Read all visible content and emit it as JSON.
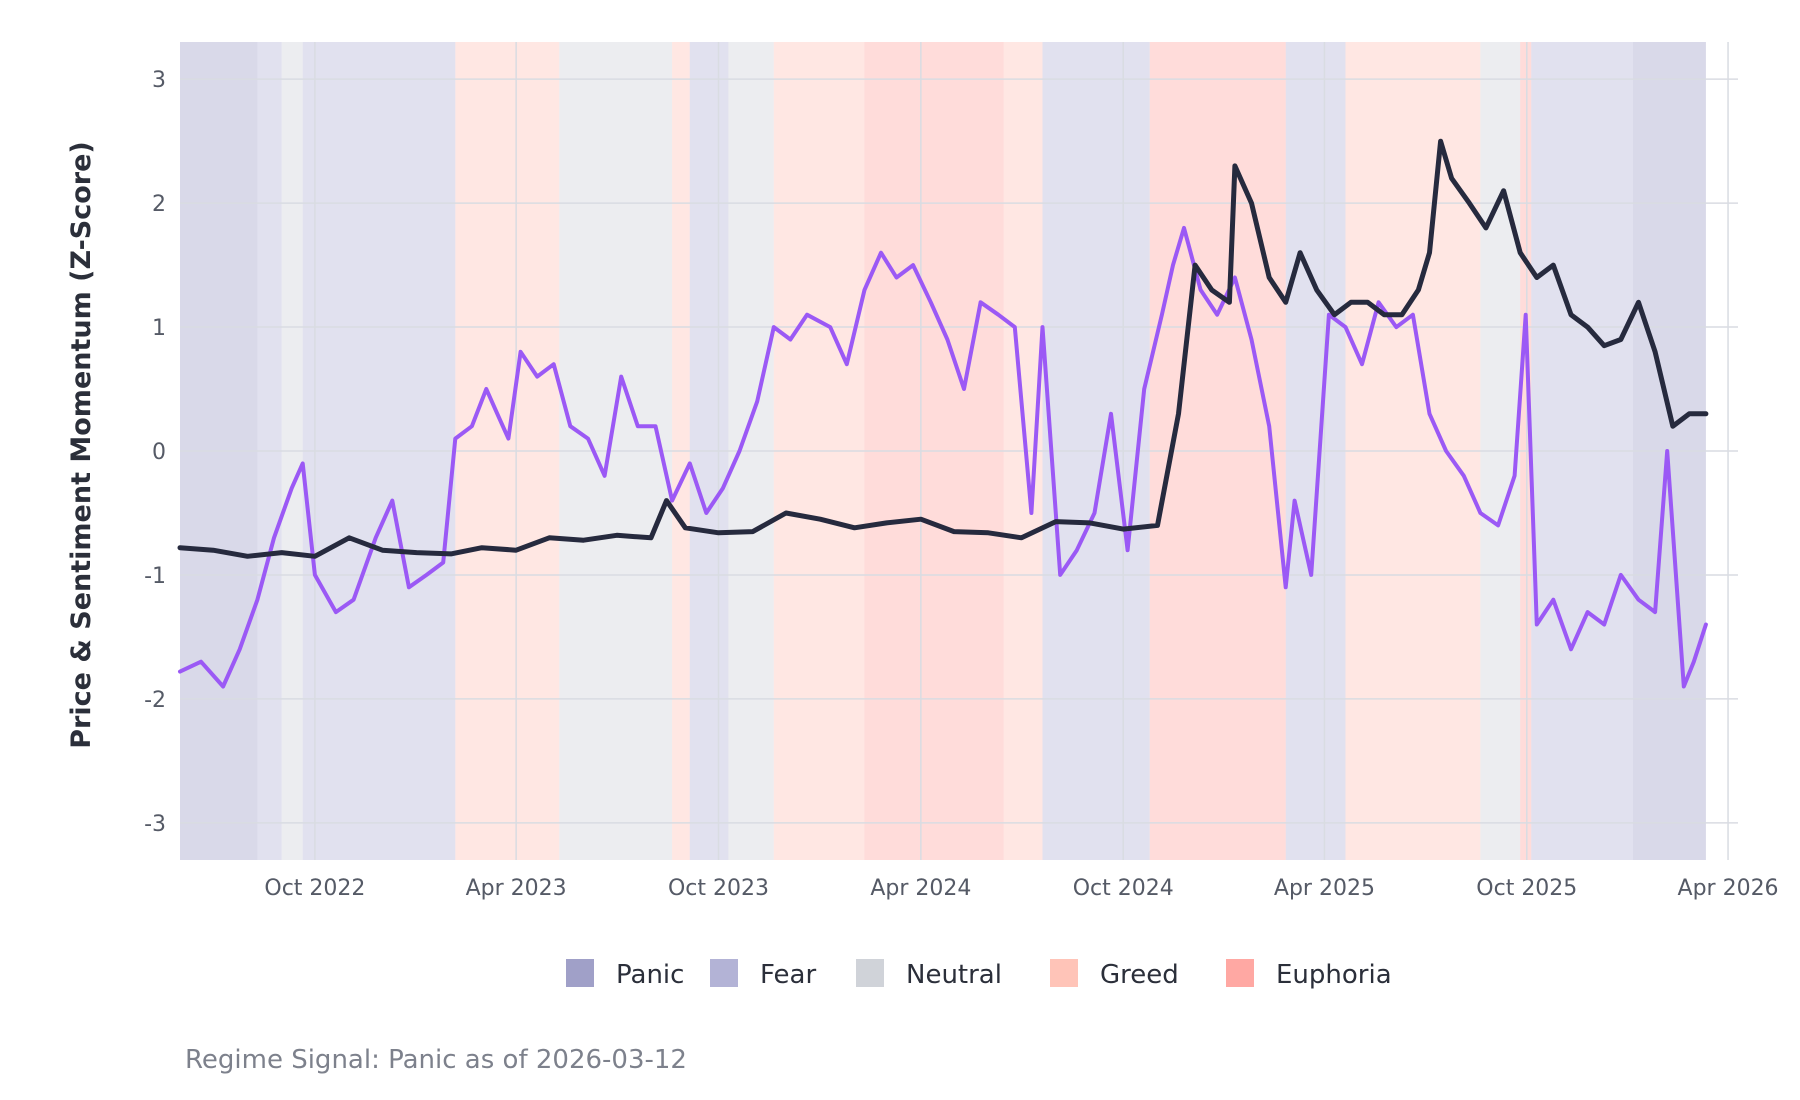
{
  "chart_data": {
    "type": "line",
    "title": "",
    "xlabel": "",
    "ylabel": "Price & Sentiment Momentum (Z-Score)",
    "ylim": [
      -3.3,
      3.3
    ],
    "xlim": [
      "2022-06-01",
      "2026-04-10"
    ],
    "yticks": [
      -3,
      -2,
      -1,
      0,
      1,
      2,
      3
    ],
    "ytick_labels": [
      "-3",
      "-2",
      "-1",
      "0",
      "1",
      "2",
      "3"
    ],
    "xticks": [
      "2022-10-01",
      "2023-04-01",
      "2023-10-01",
      "2024-04-01",
      "2024-10-01",
      "2025-04-01",
      "2025-10-01",
      "2026-04-01"
    ],
    "xtick_labels": [
      "Oct 2022",
      "Apr 2023",
      "Oct 2023",
      "Apr 2024",
      "Oct 2024",
      "Apr 2025",
      "Oct 2025",
      "Apr 2026"
    ],
    "grid": true,
    "legend_position": "bottom",
    "legend": [
      {
        "label": "Panic",
        "color": "#a0a0c8"
      },
      {
        "label": "Fear",
        "color": "#b3b3d6"
      },
      {
        "label": "Neutral",
        "color": "#d0d3d9"
      },
      {
        "label": "Greed",
        "color": "#ffc4b8"
      },
      {
        "label": "Euphoria",
        "color": "#ffa8a3"
      }
    ],
    "regime_bands": [
      {
        "start": "2022-06-01",
        "end": "2022-08-10",
        "regime": "Panic"
      },
      {
        "start": "2022-08-10",
        "end": "2022-09-01",
        "regime": "Fear"
      },
      {
        "start": "2022-09-01",
        "end": "2022-09-20",
        "regime": "Neutral"
      },
      {
        "start": "2022-09-20",
        "end": "2023-02-05",
        "regime": "Fear"
      },
      {
        "start": "2023-02-05",
        "end": "2023-05-10",
        "regime": "Greed"
      },
      {
        "start": "2023-05-10",
        "end": "2023-08-20",
        "regime": "Neutral"
      },
      {
        "start": "2023-08-20",
        "end": "2023-09-05",
        "regime": "Greed"
      },
      {
        "start": "2023-09-05",
        "end": "2023-10-10",
        "regime": "Fear"
      },
      {
        "start": "2023-10-10",
        "end": "2023-11-20",
        "regime": "Neutral"
      },
      {
        "start": "2023-11-20",
        "end": "2024-02-10",
        "regime": "Greed"
      },
      {
        "start": "2024-02-10",
        "end": "2024-06-15",
        "regime": "Euphoria"
      },
      {
        "start": "2024-06-15",
        "end": "2024-07-20",
        "regime": "Greed"
      },
      {
        "start": "2024-07-20",
        "end": "2024-10-25",
        "regime": "Fear"
      },
      {
        "start": "2024-10-25",
        "end": "2025-02-25",
        "regime": "Euphoria"
      },
      {
        "start": "2025-02-25",
        "end": "2025-04-20",
        "regime": "Fear"
      },
      {
        "start": "2025-04-20",
        "end": "2025-08-20",
        "regime": "Greed"
      },
      {
        "start": "2025-08-20",
        "end": "2025-09-25",
        "regime": "Neutral"
      },
      {
        "start": "2025-09-25",
        "end": "2025-10-05",
        "regime": "Euphoria"
      },
      {
        "start": "2025-10-05",
        "end": "2026-01-05",
        "regime": "Fear"
      },
      {
        "start": "2026-01-05",
        "end": "2026-03-12",
        "regime": "Panic"
      }
    ],
    "series": [
      {
        "color": "#262a3e",
        "x": [
          "2022-06-01",
          "2022-07-01",
          "2022-08-01",
          "2022-09-01",
          "2022-10-01",
          "2022-11-01",
          "2022-12-01",
          "2023-01-01",
          "2023-02-01",
          "2023-03-01",
          "2023-04-01",
          "2023-05-01",
          "2023-06-01",
          "2023-07-01",
          "2023-08-01",
          "2023-08-15",
          "2023-09-01",
          "2023-10-01",
          "2023-11-01",
          "2023-12-01",
          "2024-01-01",
          "2024-02-01",
          "2024-03-01",
          "2024-04-01",
          "2024-05-01",
          "2024-06-01",
          "2024-07-01",
          "2024-08-01",
          "2024-09-01",
          "2024-10-01",
          "2024-11-01",
          "2024-11-20",
          "2024-12-05",
          "2024-12-20",
          "2025-01-05",
          "2025-01-10",
          "2025-01-25",
          "2025-02-10",
          "2025-02-25",
          "2025-03-10",
          "2025-03-25",
          "2025-04-10",
          "2025-04-25",
          "2025-05-10",
          "2025-05-25",
          "2025-06-10",
          "2025-06-25",
          "2025-07-05",
          "2025-07-15",
          "2025-07-25",
          "2025-08-10",
          "2025-08-25",
          "2025-09-10",
          "2025-09-25",
          "2025-10-10",
          "2025-10-25",
          "2025-11-10",
          "2025-11-25",
          "2025-12-10",
          "2025-12-25",
          "2026-01-10",
          "2026-01-25",
          "2026-02-10",
          "2026-02-25",
          "2026-03-12"
        ],
        "y": [
          -0.78,
          -0.8,
          -0.85,
          -0.82,
          -0.85,
          -0.7,
          -0.8,
          -0.82,
          -0.83,
          -0.78,
          -0.8,
          -0.7,
          -0.72,
          -0.68,
          -0.7,
          -0.4,
          -0.62,
          -0.66,
          -0.65,
          -0.5,
          -0.55,
          -0.62,
          -0.58,
          -0.55,
          -0.65,
          -0.66,
          -0.7,
          -0.57,
          -0.58,
          -0.63,
          -0.6,
          0.3,
          1.5,
          1.3,
          1.2,
          2.3,
          2.0,
          1.4,
          1.2,
          1.6,
          1.3,
          1.1,
          1.2,
          1.2,
          1.1,
          1.1,
          1.3,
          1.6,
          2.5,
          2.2,
          2.0,
          1.8,
          2.1,
          1.6,
          1.4,
          1.5,
          1.1,
          1.0,
          0.85,
          0.9,
          1.2,
          0.8,
          0.2,
          0.3,
          0.3
        ]
      },
      {
        "color": "#9b59f5",
        "x": [
          "2022-06-01",
          "2022-06-20",
          "2022-07-10",
          "2022-07-25",
          "2022-08-10",
          "2022-08-25",
          "2022-09-10",
          "2022-09-20",
          "2022-10-01",
          "2022-10-20",
          "2022-11-05",
          "2022-11-25",
          "2022-12-10",
          "2022-12-25",
          "2023-01-10",
          "2023-01-25",
          "2023-02-05",
          "2023-02-20",
          "2023-03-05",
          "2023-03-15",
          "2023-03-25",
          "2023-04-05",
          "2023-04-20",
          "2023-05-05",
          "2023-05-20",
          "2023-06-05",
          "2023-06-20",
          "2023-07-05",
          "2023-07-20",
          "2023-08-05",
          "2023-08-20",
          "2023-09-05",
          "2023-09-20",
          "2023-10-05",
          "2023-10-20",
          "2023-11-05",
          "2023-11-20",
          "2023-12-05",
          "2023-12-20",
          "2024-01-10",
          "2024-01-25",
          "2024-02-10",
          "2024-02-25",
          "2024-03-10",
          "2024-03-25",
          "2024-04-10",
          "2024-04-25",
          "2024-05-10",
          "2024-05-25",
          "2024-06-10",
          "2024-06-25",
          "2024-07-10",
          "2024-07-20",
          "2024-08-05",
          "2024-08-20",
          "2024-09-05",
          "2024-09-20",
          "2024-10-05",
          "2024-10-20",
          "2024-11-05",
          "2024-11-15",
          "2024-11-25",
          "2024-12-10",
          "2024-12-25",
          "2025-01-10",
          "2025-01-25",
          "2025-02-10",
          "2025-02-25",
          "2025-03-05",
          "2025-03-20",
          "2025-04-05",
          "2025-04-20",
          "2025-05-05",
          "2025-05-20",
          "2025-06-05",
          "2025-06-20",
          "2025-07-05",
          "2025-07-20",
          "2025-08-05",
          "2025-08-20",
          "2025-09-05",
          "2025-09-20",
          "2025-09-30",
          "2025-10-10",
          "2025-10-25",
          "2025-11-10",
          "2025-11-25",
          "2025-12-10",
          "2025-12-25",
          "2026-01-10",
          "2026-01-25",
          "2026-02-05",
          "2026-02-20",
          "2026-03-01",
          "2026-03-12"
        ],
        "y": [
          -1.78,
          -1.7,
          -1.9,
          -1.6,
          -1.2,
          -0.7,
          -0.3,
          -0.1,
          -1.0,
          -1.3,
          -1.2,
          -0.7,
          -0.4,
          -1.1,
          -1.0,
          -0.9,
          0.1,
          0.2,
          0.5,
          0.3,
          0.1,
          0.8,
          0.6,
          0.7,
          0.2,
          0.1,
          -0.2,
          0.6,
          0.2,
          0.2,
          -0.4,
          -0.1,
          -0.5,
          -0.3,
          0.0,
          0.4,
          1.0,
          0.9,
          1.1,
          1.0,
          0.7,
          1.3,
          1.6,
          1.4,
          1.5,
          1.2,
          0.9,
          0.5,
          1.2,
          1.1,
          1.0,
          -0.5,
          1.0,
          -1.0,
          -0.8,
          -0.5,
          0.3,
          -0.8,
          0.5,
          1.1,
          1.5,
          1.8,
          1.3,
          1.1,
          1.4,
          0.9,
          0.2,
          -1.1,
          -0.4,
          -1.0,
          1.1,
          1.0,
          0.7,
          1.2,
          1.0,
          1.1,
          0.3,
          0.0,
          -0.2,
          -0.5,
          -0.6,
          -0.2,
          1.1,
          -1.4,
          -1.2,
          -1.6,
          -1.3,
          -1.4,
          -1.0,
          -1.2,
          -1.3,
          0.0,
          -1.9,
          -1.7,
          -1.4
        ]
      }
    ]
  },
  "caption": "Regime Signal: Panic as of 2026-03-12"
}
